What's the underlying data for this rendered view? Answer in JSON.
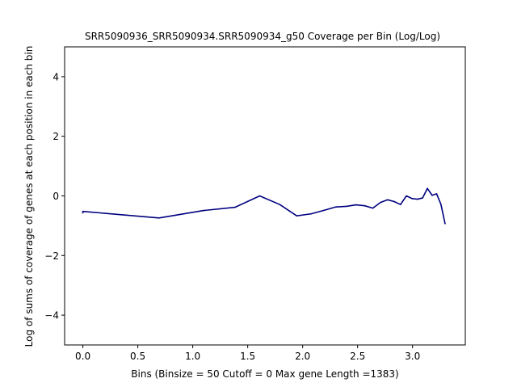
{
  "chart_data": {
    "type": "line",
    "title": "SRR5090936_SRR5090934.SRR5090934_g50 Coverage per Bin (Log/Log)",
    "xlabel": "Bins  (Binsize = 50 Cutoff = 0 Max gene Length =1383)",
    "ylabel": "Log of sums of coverage of genes at each position in each bin",
    "xlim": [
      -0.166,
      3.48
    ],
    "ylim": [
      -5,
      5
    ],
    "x_ticks": [
      0.0,
      0.5,
      1.0,
      1.5,
      2.0,
      2.5,
      3.0
    ],
    "x_tick_labels": [
      "0.0",
      "0.5",
      "1.0",
      "1.5",
      "2.0",
      "2.5",
      "3.0"
    ],
    "y_ticks": [
      -4,
      -2,
      0,
      2,
      4
    ],
    "y_tick_labels": [
      "−4",
      "−2",
      "0",
      "2",
      "4"
    ],
    "grid": false,
    "line_color": "#000080",
    "series": [
      {
        "x": [
          0.0,
          0.0,
          0.693,
          1.099,
          1.386,
          1.609,
          1.792,
          1.946,
          2.079,
          2.197,
          2.303,
          2.398,
          2.485,
          2.565,
          2.639,
          2.708,
          2.773,
          2.833,
          2.89,
          2.944,
          2.996,
          3.045,
          3.091,
          3.135,
          3.178,
          3.219,
          3.258,
          3.296
        ],
        "values": [
          -0.57,
          -0.52,
          -0.74,
          -0.49,
          -0.38,
          0.0,
          -0.29,
          -0.67,
          -0.6,
          -0.48,
          -0.37,
          -0.35,
          -0.3,
          -0.33,
          -0.41,
          -0.22,
          -0.13,
          -0.19,
          -0.29,
          0.0,
          -0.09,
          -0.11,
          -0.07,
          0.25,
          0.02,
          0.07,
          -0.28,
          -0.93
        ]
      }
    ]
  }
}
